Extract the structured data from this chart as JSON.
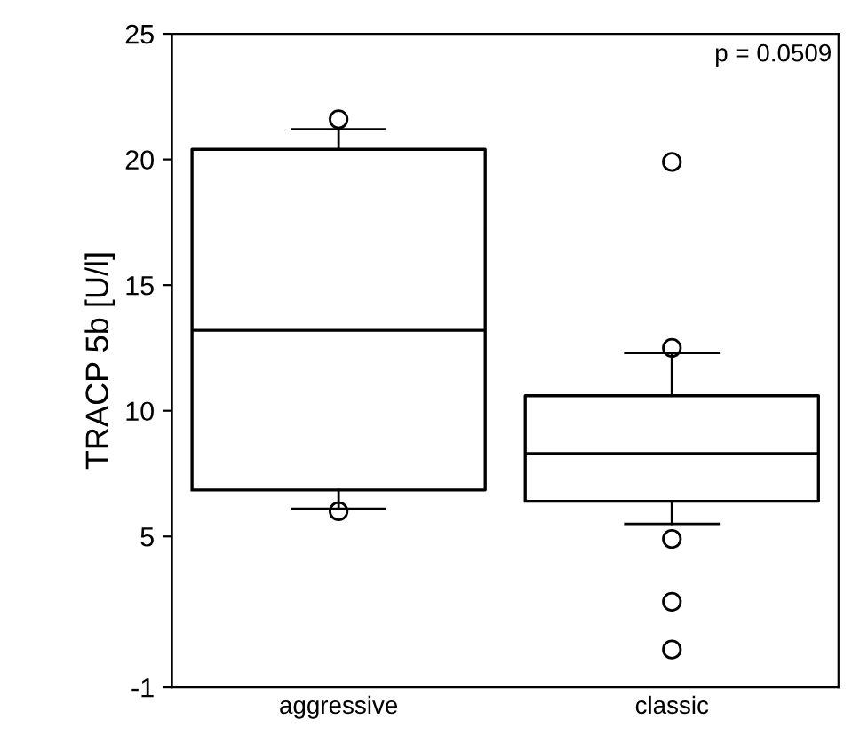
{
  "chart_data": {
    "type": "box",
    "ylabel": "TRACP 5b [U/l]",
    "categories": [
      "aggressive",
      "classic"
    ],
    "boxes": [
      {
        "low": 6.1,
        "q1": 6.85,
        "median": 13.2,
        "q3": 20.4,
        "high": 21.2,
        "outliers": [
          21.6,
          6.0
        ]
      },
      {
        "low": 5.5,
        "q1": 6.4,
        "median": 8.3,
        "q3": 10.6,
        "high": 12.3,
        "outliers": [
          19.9,
          12.5,
          4.9,
          2.4,
          0.5
        ]
      }
    ],
    "color": "#000000",
    "ylim": [
      -1,
      25
    ],
    "yticks": [
      -1,
      5,
      10,
      15,
      20,
      25
    ],
    "annotations": [
      "p = 0.0509"
    ],
    "grid": false
  }
}
